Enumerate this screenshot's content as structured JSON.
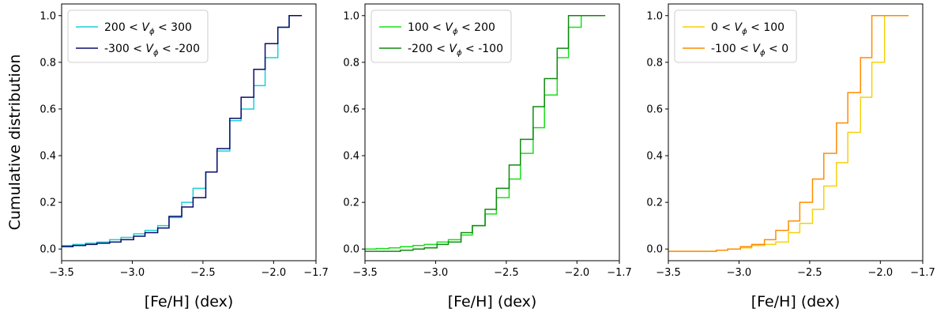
{
  "figure": {
    "ylabel": "Cumulative distribution"
  },
  "chart_data": [
    {
      "type": "line",
      "step": "post",
      "xlabel": "[Fe/H] (dex)",
      "ylabel": "Cumulative distribution",
      "xlim": [
        -3.5,
        -1.7
      ],
      "ylim": [
        -0.05,
        1.05
      ],
      "xticks": [
        -3.5,
        -3.0,
        -2.5,
        -2.0,
        -1.7
      ],
      "yticks": [
        0.0,
        0.2,
        0.4,
        0.6,
        0.8,
        1.0
      ],
      "legend_placement": "upper-left",
      "x_edges": [
        -3.5,
        -3.42,
        -3.33,
        -3.25,
        -3.16,
        -3.08,
        -2.99,
        -2.91,
        -2.82,
        -2.74,
        -2.65,
        -2.57,
        -2.48,
        -2.4,
        -2.31,
        -2.23,
        -2.14,
        -2.06,
        -1.97,
        -1.89,
        -1.8
      ],
      "series": [
        {
          "name": "200 < V_ϕ < 300",
          "legend_prefix": "200 < ",
          "legend_var": "V",
          "legend_sub": "ϕ",
          "legend_suffix": " < 300",
          "color": "#1ccfd6",
          "values": [
            0.015,
            0.02,
            0.025,
            0.03,
            0.04,
            0.05,
            0.065,
            0.08,
            0.1,
            0.135,
            0.2,
            0.26,
            0.33,
            0.42,
            0.55,
            0.6,
            0.7,
            0.82,
            0.95,
            1.0
          ]
        },
        {
          "name": "-300 < V_ϕ < -200",
          "legend_prefix": "-300 < ",
          "legend_var": "V",
          "legend_sub": "ϕ",
          "legend_suffix": " < -200",
          "color": "#0b0b6b",
          "values": [
            0.01,
            0.015,
            0.02,
            0.025,
            0.03,
            0.04,
            0.055,
            0.07,
            0.09,
            0.14,
            0.18,
            0.22,
            0.33,
            0.43,
            0.56,
            0.65,
            0.77,
            0.88,
            0.95,
            1.0
          ]
        }
      ]
    },
    {
      "type": "line",
      "step": "post",
      "xlabel": "[Fe/H] (dex)",
      "ylabel": "",
      "xlim": [
        -3.5,
        -1.7
      ],
      "ylim": [
        -0.05,
        1.05
      ],
      "xticks": [
        -3.5,
        -3.0,
        -2.5,
        -2.0,
        -1.7
      ],
      "yticks": [
        0.0,
        0.2,
        0.4,
        0.6,
        0.8,
        1.0
      ],
      "legend_placement": "upper-left",
      "x_edges": [
        -3.5,
        -3.42,
        -3.33,
        -3.25,
        -3.16,
        -3.08,
        -2.99,
        -2.91,
        -2.82,
        -2.74,
        -2.65,
        -2.57,
        -2.48,
        -2.4,
        -2.31,
        -2.23,
        -2.14,
        -2.06,
        -1.97,
        -1.89,
        -1.8
      ],
      "series": [
        {
          "name": "100 < V_ϕ < 200",
          "legend_prefix": "100 < ",
          "legend_var": "V",
          "legend_sub": "ϕ",
          "legend_suffix": " < 200",
          "color": "#19e019",
          "values": [
            0.0,
            0.002,
            0.005,
            0.01,
            0.015,
            0.02,
            0.03,
            0.04,
            0.06,
            0.1,
            0.15,
            0.22,
            0.3,
            0.41,
            0.52,
            0.66,
            0.82,
            0.95,
            1.0,
            1.0
          ]
        },
        {
          "name": "-200 < V_ϕ < -100",
          "legend_prefix": "-200 < ",
          "legend_var": "V",
          "legend_sub": "ϕ",
          "legend_suffix": " < -100",
          "color": "#118a11",
          "values": [
            -0.01,
            -0.01,
            -0.01,
            -0.005,
            0.0,
            0.005,
            0.02,
            0.03,
            0.07,
            0.1,
            0.17,
            0.26,
            0.36,
            0.47,
            0.61,
            0.73,
            0.86,
            1.0,
            1.0,
            1.0
          ]
        }
      ]
    },
    {
      "type": "line",
      "step": "post",
      "xlabel": "[Fe/H] (dex)",
      "ylabel": "",
      "xlim": [
        -3.5,
        -1.7
      ],
      "ylim": [
        -0.05,
        1.05
      ],
      "xticks": [
        -3.5,
        -3.0,
        -2.5,
        -2.0,
        -1.7
      ],
      "yticks": [
        0.0,
        0.2,
        0.4,
        0.6,
        0.8,
        1.0
      ],
      "legend_placement": "upper-left",
      "x_edges": [
        -3.5,
        -3.42,
        -3.33,
        -3.25,
        -3.16,
        -3.08,
        -2.99,
        -2.91,
        -2.82,
        -2.74,
        -2.65,
        -2.57,
        -2.48,
        -2.4,
        -2.31,
        -2.23,
        -2.14,
        -2.06,
        -1.97,
        -1.89,
        -1.8
      ],
      "series": [
        {
          "name": "0 < V_ϕ < 100",
          "legend_prefix": "0 < ",
          "legend_var": "V",
          "legend_sub": "ϕ",
          "legend_suffix": " < 100",
          "color": "#f5d10a",
          "values": [
            -0.01,
            -0.01,
            -0.01,
            -0.01,
            -0.005,
            0.0,
            0.005,
            0.015,
            0.02,
            0.03,
            0.07,
            0.11,
            0.17,
            0.27,
            0.37,
            0.5,
            0.65,
            0.8,
            1.0,
            1.0
          ]
        },
        {
          "name": "-100 < V_ϕ < 0",
          "legend_prefix": "-100 < ",
          "legend_var": "V",
          "legend_sub": "ϕ",
          "legend_suffix": " < 0",
          "color": "#ff8c00",
          "values": [
            -0.01,
            -0.01,
            -0.01,
            -0.01,
            -0.005,
            0.0,
            0.01,
            0.02,
            0.04,
            0.08,
            0.12,
            0.2,
            0.3,
            0.41,
            0.54,
            0.67,
            0.82,
            1.0,
            1.0,
            1.0
          ]
        }
      ]
    }
  ]
}
